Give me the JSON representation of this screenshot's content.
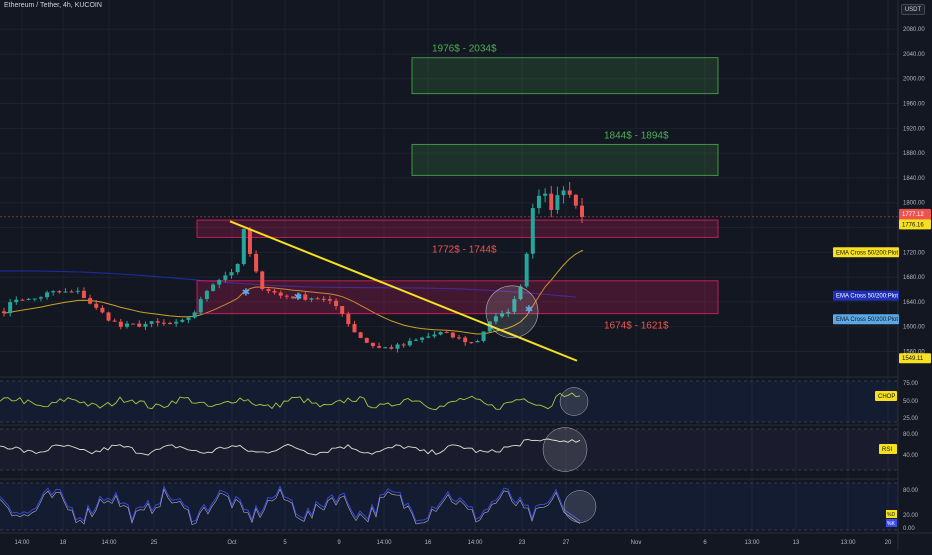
{
  "header": {
    "symbol_title": "Ethereum / Tether, 4h, KUCOIN",
    "currency": "USDT"
  },
  "colors": {
    "background": "#131722",
    "grid": "#1e222d",
    "candle_up": "#26a69a",
    "candle_down": "#ef5350",
    "trendline": "#f7e01e",
    "ema_orange": "#c9a227",
    "ema_blue": "#1f2fb8",
    "target_zone": "#4caf50",
    "resistance_zone": "#e91e63",
    "chop_line": "#a8c93a",
    "rsi_line": "#e0dfd6",
    "stoch_k": "#3d4ce6",
    "stoch_d": "#d7d9e0"
  },
  "chart_data": {
    "type": "candlestick",
    "symbol": "Ethereum / Tether",
    "timeframe": "4h",
    "exchange": "KUCOIN",
    "x_ticks": [
      "14:00",
      "18",
      "14:00",
      "25",
      "Oct",
      "5",
      "9",
      "14:00",
      "16",
      "14:00",
      "23",
      "27",
      "Nov",
      "6",
      "13:00",
      "13",
      "13:00",
      "20"
    ],
    "y_axis": {
      "ticks": [
        "2080.00",
        "2040.00",
        "2000.00",
        "1960.00",
        "1920.00",
        "1880.00",
        "1840.00",
        "1800.00",
        "1760.00",
        "1720.00",
        "1680.00",
        "1640.00",
        "1600.00",
        "1560.00"
      ],
      "range": [
        1522,
        2098
      ]
    },
    "price_labels": {
      "last_price": "1777.12",
      "countdown": "03:26:41",
      "level_1776": "1776.16",
      "ema_plot_1": "EMA Cross 50/200:Plot",
      "ema_plot_2": "EMA Cross 50/200:Plot",
      "ema_plot_3": "EMA Cross 50/200:Plot",
      "level_1549": "1549.11"
    },
    "zones": [
      {
        "label": "1976$ - 2034$",
        "low": 1976,
        "high": 2034,
        "kind": "target"
      },
      {
        "label": "1844$ - 1894$",
        "low": 1844,
        "high": 1894,
        "kind": "target"
      },
      {
        "label": "1772$ - 1744$",
        "low": 1744,
        "high": 1772,
        "kind": "resistance"
      },
      {
        "label": "1674$ - 1621$",
        "low": 1621,
        "high": 1674,
        "kind": "resistance"
      }
    ],
    "trendline": {
      "start": 1770,
      "end": 1545
    },
    "indicators": [
      {
        "name": "CHOP",
        "ticks": [
          "75.00",
          "50.00",
          "25.00"
        ],
        "range": [
          20,
          80
        ]
      },
      {
        "name": "RSI",
        "ticks": [
          "80.00",
          "40.00"
        ],
        "range": [
          20,
          90
        ]
      },
      {
        "name": "Stoch",
        "ticks": [
          "80.00",
          "20.00",
          "0.00"
        ],
        "labels": [
          "%D",
          "%K"
        ],
        "range": [
          0,
          100
        ]
      }
    ]
  }
}
